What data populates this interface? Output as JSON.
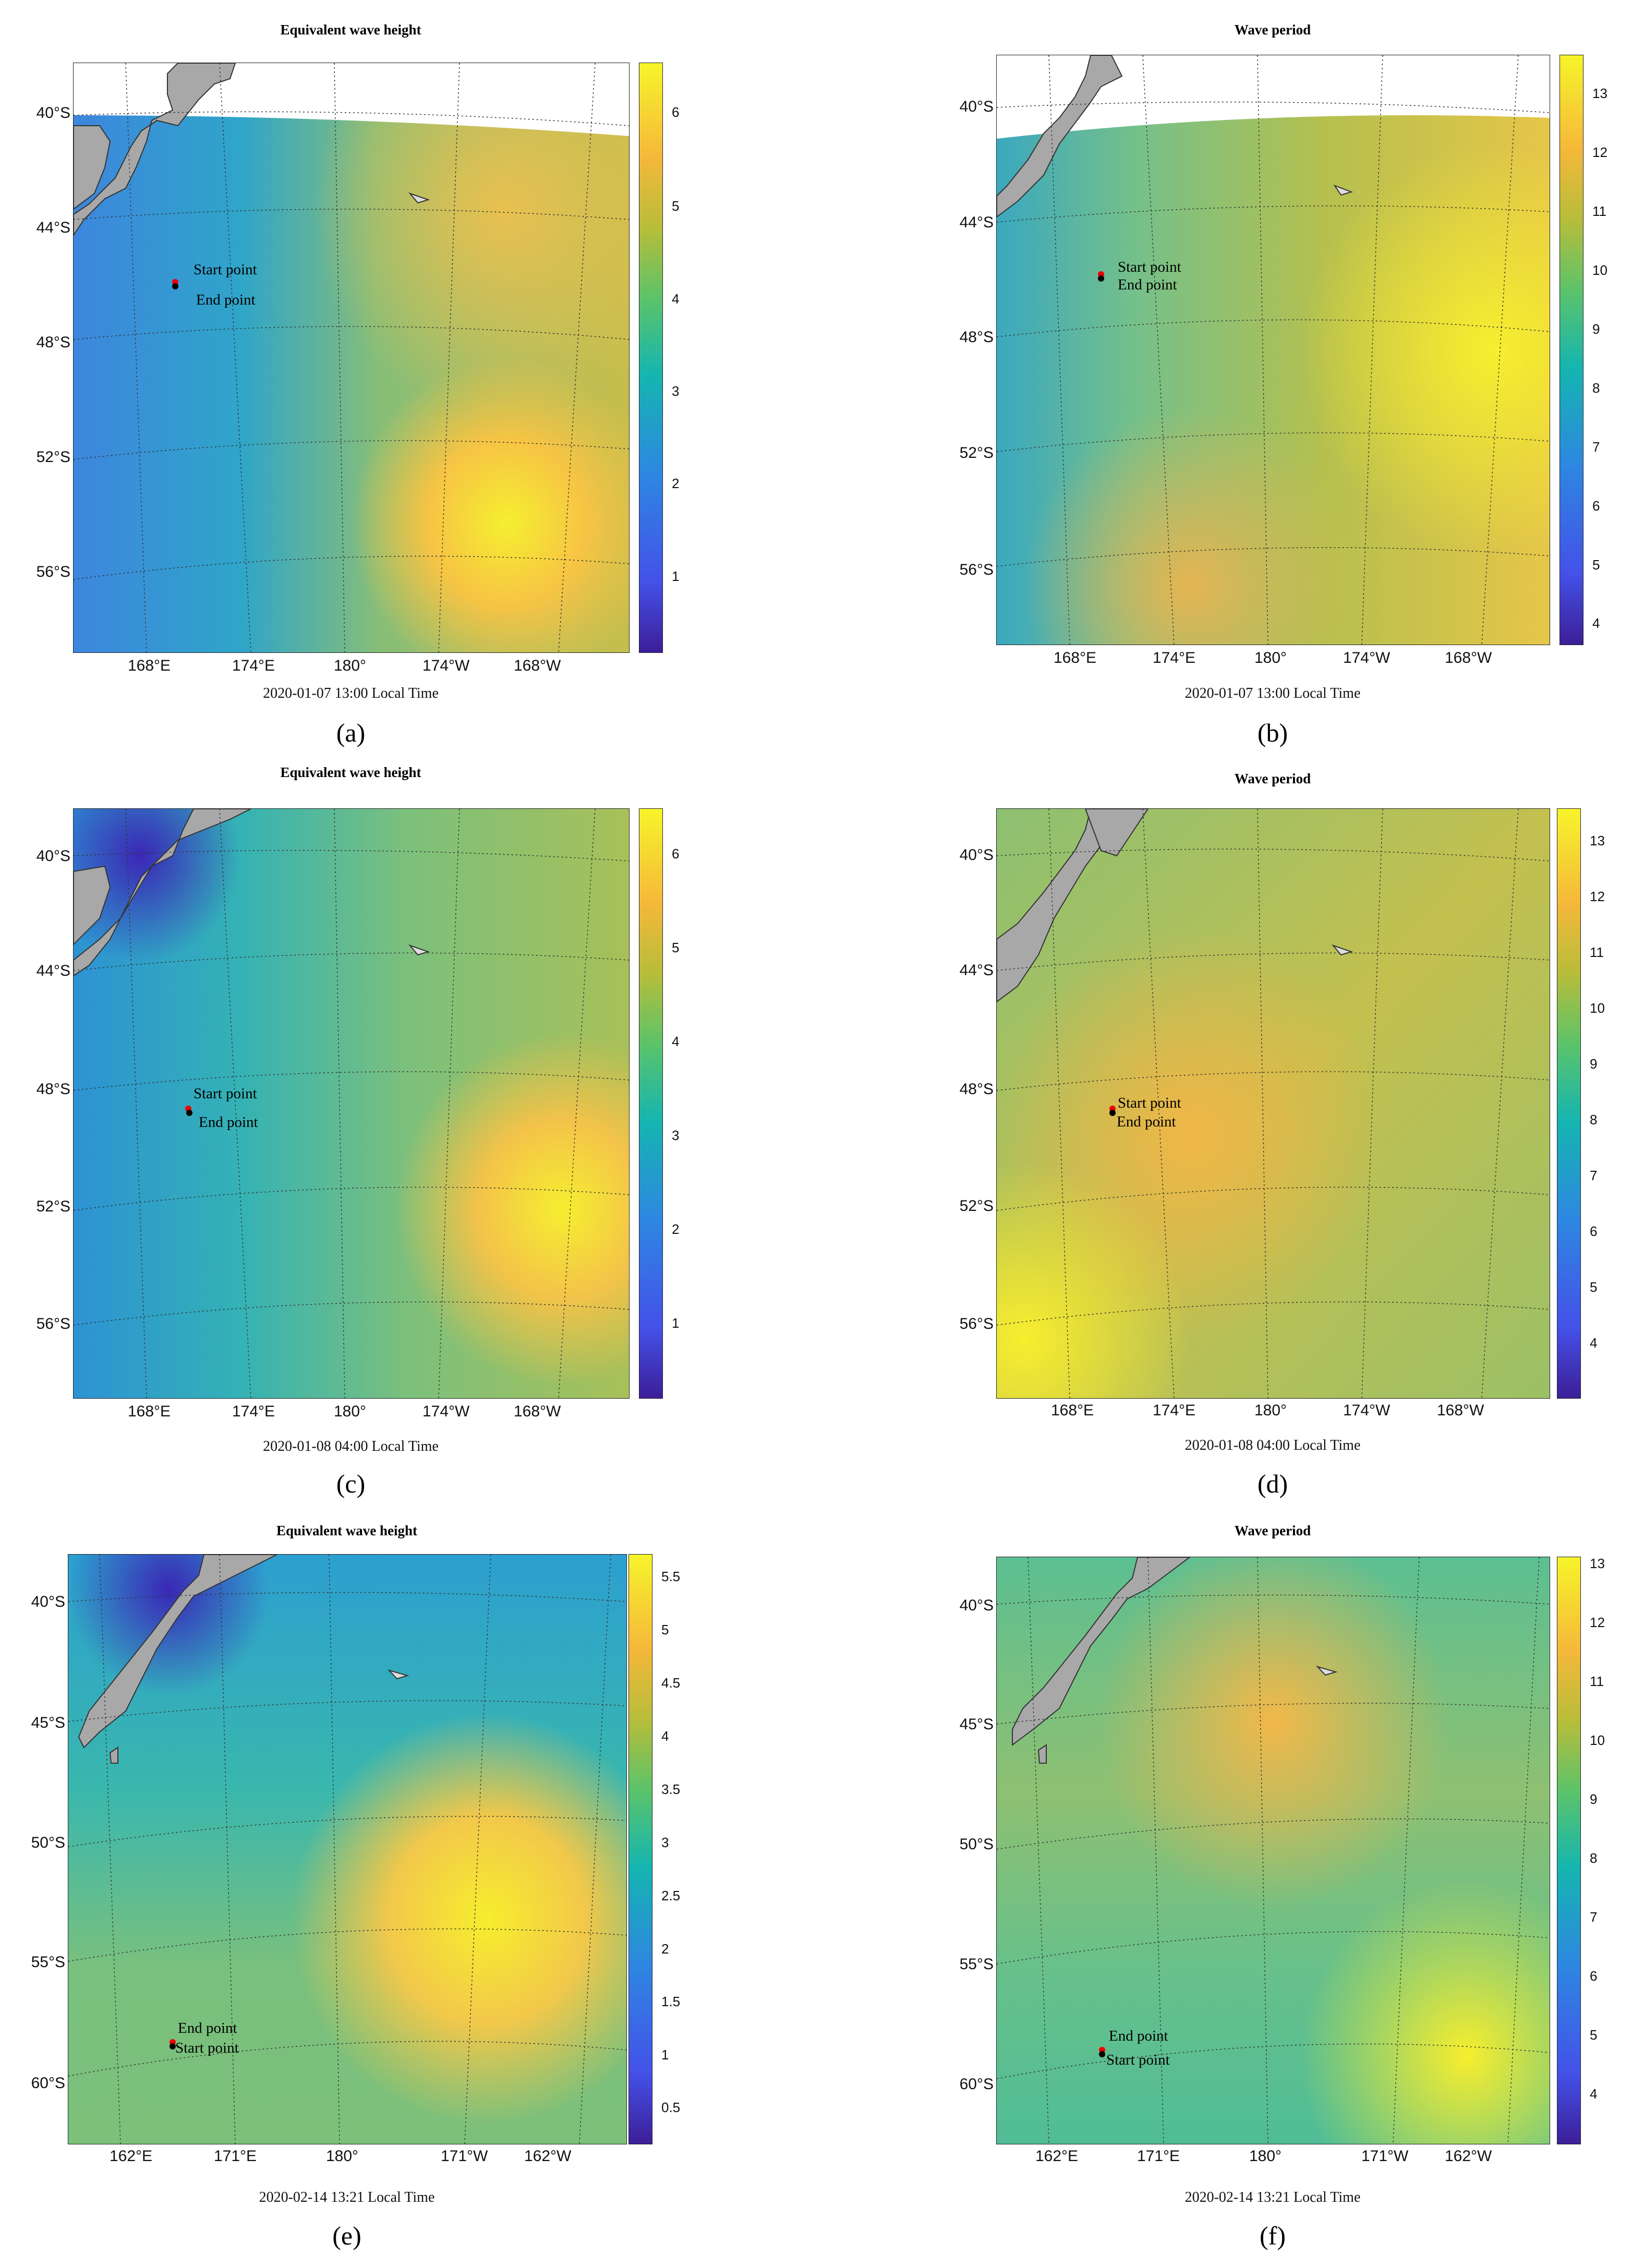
{
  "chart_data": [
    {
      "id": "a",
      "type": "heatmap",
      "title": "Equivalent wave height",
      "timestamp": "2020-01-07 13:00 Local Time",
      "panel_label": "(a)",
      "colorbar": {
        "min": 0,
        "max": 6.4,
        "ticks": [
          "1",
          "2",
          "3",
          "4",
          "5",
          "6"
        ]
      },
      "lat_labels": [
        "40°S",
        "44°S",
        "48°S",
        "52°S",
        "56°S"
      ],
      "lon_labels": [
        "168°E",
        "174°E",
        "180°",
        "174°W",
        "168°W"
      ],
      "start_label": "Start point",
      "end_label": "End point"
    },
    {
      "id": "b",
      "type": "heatmap",
      "title": "Wave period",
      "timestamp": "2020-01-07 13:00 Local Time",
      "panel_label": "(b)",
      "colorbar": {
        "min": 3.5,
        "max": 13.5,
        "ticks": [
          "4",
          "5",
          "6",
          "7",
          "8",
          "9",
          "10",
          "11",
          "12",
          "13"
        ]
      },
      "lat_labels": [
        "40°S",
        "44°S",
        "48°S",
        "52°S",
        "56°S"
      ],
      "lon_labels": [
        "168°E",
        "174°E",
        "180°",
        "174°W",
        "168°W"
      ],
      "start_label": "Start point",
      "end_label": "End point"
    },
    {
      "id": "c",
      "type": "heatmap",
      "title": "Equivalent wave height",
      "timestamp": "2020-01-08 04:00 Local Time",
      "panel_label": "(c)",
      "colorbar": {
        "min": 0,
        "max": 6.3,
        "ticks": [
          "1",
          "2",
          "3",
          "4",
          "5",
          "6"
        ]
      },
      "lat_labels": [
        "40°S",
        "44°S",
        "48°S",
        "52°S",
        "56°S"
      ],
      "lon_labels": [
        "168°E",
        "174°E",
        "180°",
        "174°W",
        "168°W"
      ],
      "start_label": "Start point",
      "end_label": "End point"
    },
    {
      "id": "d",
      "type": "heatmap",
      "title": "Wave period",
      "timestamp": "2020-01-08 04:00 Local Time",
      "panel_label": "(d)",
      "colorbar": {
        "min": 3,
        "max": 13.5,
        "ticks": [
          "4",
          "5",
          "6",
          "7",
          "8",
          "9",
          "10",
          "11",
          "12",
          "13"
        ]
      },
      "lat_labels": [
        "40°S",
        "44°S",
        "48°S",
        "52°S",
        "56°S"
      ],
      "lon_labels": [
        "168°E",
        "174°E",
        "180°",
        "174°W",
        "168°W"
      ],
      "start_label": "Start point",
      "end_label": "End point"
    },
    {
      "id": "e",
      "type": "heatmap",
      "title": "Equivalent wave height",
      "timestamp": "2020-02-14 13:21 Local Time",
      "panel_label": "(e)",
      "colorbar": {
        "min": 0.2,
        "max": 5.7,
        "ticks": [
          "0.5",
          "1",
          "1.5",
          "2",
          "2.5",
          "3",
          "3.5",
          "4",
          "4.5",
          "5",
          "5.5"
        ]
      },
      "lat_labels": [
        "40°S",
        "45°S",
        "50°S",
        "55°S",
        "60°S"
      ],
      "lon_labels": [
        "162°E",
        "171°E",
        "180°",
        "171°W",
        "162°W"
      ],
      "start_label": "Start point",
      "end_label": "End point"
    },
    {
      "id": "f",
      "type": "heatmap",
      "title": "Wave period",
      "timestamp": "2020-02-14 13:21 Local Time",
      "panel_label": "(f)",
      "colorbar": {
        "min": 3.2,
        "max": 13.2,
        "ticks": [
          "4",
          "5",
          "6",
          "7",
          "8",
          "9",
          "10",
          "11",
          "12",
          "13"
        ]
      },
      "lat_labels": [
        "40°S",
        "45°S",
        "50°S",
        "55°S",
        "60°S"
      ],
      "lon_labels": [
        "162°E",
        "171°E",
        "180°",
        "171°W",
        "162°W"
      ],
      "start_label": "Start point",
      "end_label": "End point"
    }
  ]
}
